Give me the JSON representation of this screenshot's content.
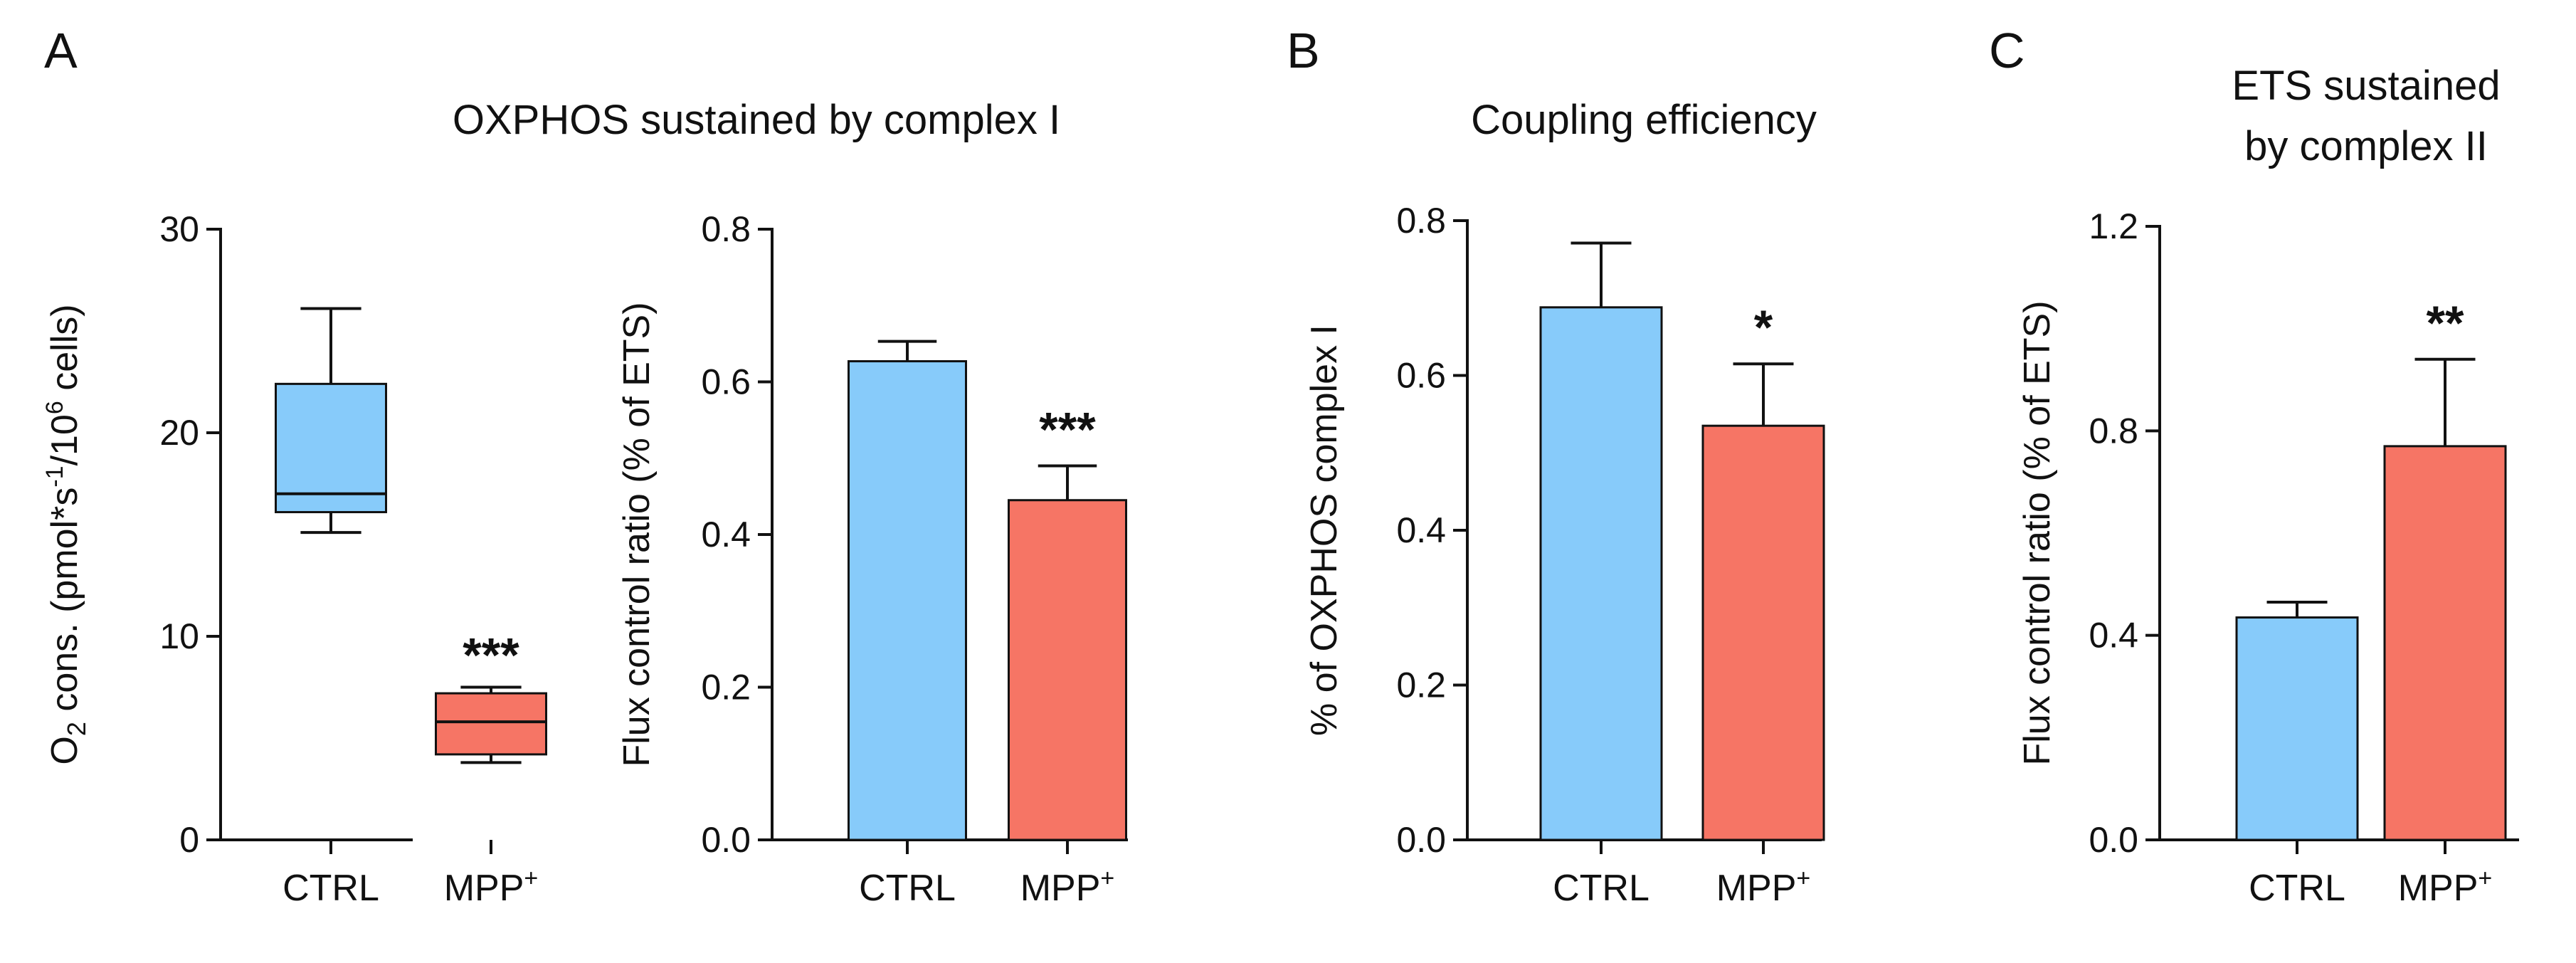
{
  "colors": {
    "ctrl": "#87CBFA",
    "mpp": "#F67565",
    "axis": "#111111"
  },
  "panel_labels": [
    "A",
    "B",
    "C"
  ],
  "chart_data": [
    {
      "id": "A1",
      "type": "box",
      "panel_title": "OXPHOS sustained by complex I",
      "ylabel_parts": [
        "O",
        "2",
        " cons. (pmol*s",
        "-1",
        "/10",
        "6",
        " cells)"
      ],
      "ylim": [
        0,
        30
      ],
      "yticks": [
        0,
        10,
        20,
        30
      ],
      "ytick_labels": [
        "0",
        "10",
        "20",
        "30"
      ],
      "categories": [
        {
          "label": "CTRL",
          "sup": ""
        },
        {
          "label": "MPP",
          "sup": "+"
        }
      ],
      "boxes": [
        {
          "min": 15.1,
          "q1": 16.1,
          "median": 17.0,
          "q3": 22.4,
          "max": 26.1,
          "color_key": "ctrl",
          "sig": ""
        },
        {
          "min": 3.8,
          "q1": 4.2,
          "median": 5.8,
          "q3": 7.2,
          "max": 7.5,
          "color_key": "mpp",
          "sig": "***"
        }
      ]
    },
    {
      "id": "A2",
      "type": "bar",
      "ylabel": "Flux control ratio (% of ETS)",
      "ylim": [
        0,
        0.8
      ],
      "yticks": [
        0,
        0.2,
        0.4,
        0.6,
        0.8
      ],
      "ytick_labels": [
        "0.0",
        "0.2",
        "0.4",
        "0.6",
        "0.8"
      ],
      "categories": [
        {
          "label": "CTRL",
          "sup": ""
        },
        {
          "label": "MPP",
          "sup": "+"
        }
      ],
      "values": [
        0.627,
        0.445
      ],
      "errors": [
        0.026,
        0.045
      ],
      "color_keys": [
        "ctrl",
        "mpp"
      ],
      "sig": [
        "",
        "***"
      ]
    },
    {
      "id": "B",
      "type": "bar",
      "panel_title": "Coupling efficiency",
      "ylabel": "% of OXPHOS complex I",
      "ylim": [
        0,
        0.8
      ],
      "yticks": [
        0,
        0.2,
        0.4,
        0.6,
        0.8
      ],
      "ytick_labels": [
        "0.0",
        "0.2",
        "0.4",
        "0.6",
        "0.8"
      ],
      "categories": [
        {
          "label": "CTRL",
          "sup": ""
        },
        {
          "label": "MPP",
          "sup": "+"
        }
      ],
      "values": [
        0.688,
        0.535
      ],
      "errors": [
        0.083,
        0.08
      ],
      "color_keys": [
        "ctrl",
        "mpp"
      ],
      "sig": [
        "",
        "*"
      ]
    },
    {
      "id": "C",
      "type": "bar",
      "panel_title_lines": [
        "ETS sustained",
        "by complex II"
      ],
      "ylabel": "Flux control ratio (% of ETS)",
      "ylim": [
        0,
        1.2
      ],
      "yticks": [
        0,
        0.4,
        0.8,
        1.2
      ],
      "ytick_labels": [
        "0.0",
        "0.4",
        "0.8",
        "1.2"
      ],
      "categories": [
        {
          "label": "CTRL",
          "sup": ""
        },
        {
          "label": "MPP",
          "sup": "+"
        }
      ],
      "values": [
        0.435,
        0.77
      ],
      "errors": [
        0.03,
        0.17
      ],
      "color_keys": [
        "ctrl",
        "mpp"
      ],
      "sig": [
        "",
        "**"
      ]
    }
  ]
}
